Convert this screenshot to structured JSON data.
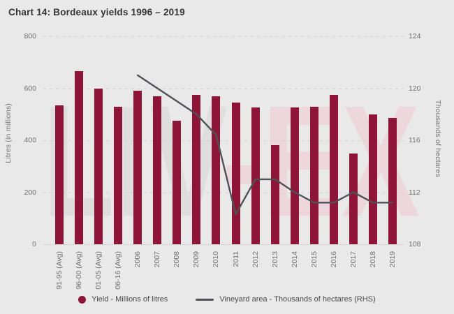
{
  "title": "Chart 14: Bordeaux yields 1996 – 2019",
  "watermark": {
    "gray": "LIV",
    "pink": "-EX"
  },
  "colors": {
    "background": "#e9e9e9",
    "bar": "#8e1538",
    "line": "#4e5257",
    "grid": "#d0d0d0",
    "tick_text": "#707070",
    "title_text": "#333338",
    "watermark_gray": "#dedede",
    "watermark_pink": "#eed7dc"
  },
  "chart_data": {
    "type": "bar",
    "title": "Chart 14: Bordeaux yields 1996 – 2019",
    "categories": [
      "91-95 (Avg)",
      "96-00 (Avg)",
      "01-05 (Avg)",
      "06-16 (Avg)",
      "2006",
      "2007",
      "2008",
      "2009",
      "2010",
      "2011",
      "2012",
      "2013",
      "2014",
      "2015",
      "2016",
      "2017",
      "2018",
      "2019"
    ],
    "series": [
      {
        "name": "Yield - Millions of litres",
        "type": "bar",
        "axis": "left",
        "values": [
          535,
          665,
          600,
          530,
          590,
          570,
          475,
          575,
          570,
          545,
          525,
          380,
          525,
          530,
          575,
          350,
          500,
          485
        ]
      },
      {
        "name": "Vineyard area - Thousands of hectares (RHS)",
        "type": "line",
        "axis": "right",
        "values": [
          null,
          null,
          null,
          null,
          121,
          120,
          119,
          118,
          116.4,
          110.3,
          113,
          113,
          112,
          111.2,
          111.2,
          112,
          111.2,
          111.2
        ]
      }
    ],
    "ylabel_left": "Litres (in millions)",
    "ylabel_right": "Thousands of hectares",
    "ylim_left": [
      0,
      800
    ],
    "yticks_left": [
      0,
      200,
      400,
      600,
      800
    ],
    "ylim_right": [
      108,
      124
    ],
    "yticks_right": [
      108,
      112,
      116,
      120,
      124
    ],
    "grid": true,
    "legend_position": "bottom"
  },
  "legend": {
    "items": [
      {
        "marker": "circle",
        "label": "Yield - Millions of litres"
      },
      {
        "marker": "line",
        "label": "Vineyard area - Thousands of hectares (RHS)"
      }
    ]
  }
}
